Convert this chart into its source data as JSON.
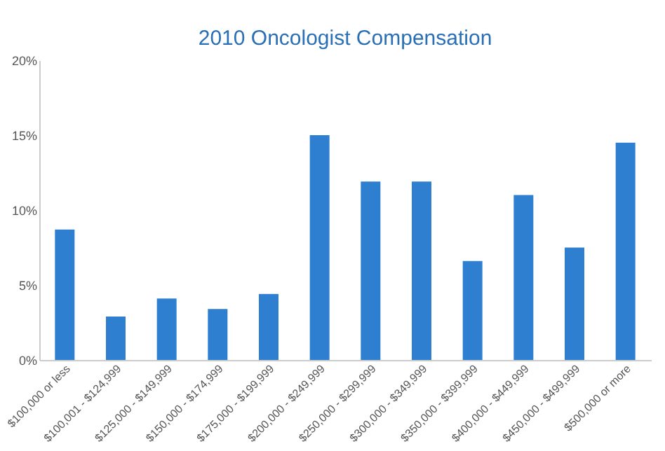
{
  "chart_data": {
    "type": "bar",
    "title": "2010 Oncologist Compensation",
    "categories": [
      "$100,000 or less",
      "$100,001 - $124,999",
      "$125,000 - $149,999",
      "$150,000 - $174,999",
      "$175,000 - $199,999",
      "$200,000 - $249,999",
      "$250,000 - $299,999",
      "$300,000 - $349,999",
      "$350,000 - $399,999",
      "$400,000 - $449,999",
      "$450,000 - $499,999",
      "$500,000  or more"
    ],
    "values": [
      8.7,
      2.9,
      4.1,
      3.4,
      4.4,
      15.0,
      11.9,
      11.9,
      6.6,
      11.0,
      7.5,
      14.5
    ],
    "color": "#2f7fd0",
    "ylim": [
      0,
      20
    ],
    "yticks": [
      {
        "value": 0,
        "label": "0%"
      },
      {
        "value": 5,
        "label": "5%"
      },
      {
        "value": 10,
        "label": "10%"
      },
      {
        "value": 15,
        "label": "15%"
      },
      {
        "value": 20,
        "label": "20%"
      }
    ],
    "grid": false
  }
}
